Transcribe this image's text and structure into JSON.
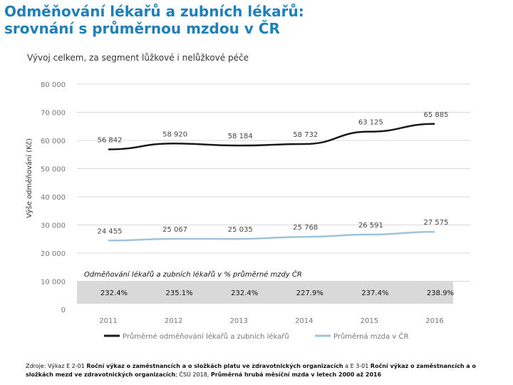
{
  "title_line1": "Odměňování lékařů a zubních lékařů:",
  "title_line2": "srovnání s průměrnou mzdou v ČR",
  "subtitle": "Vývoj celkem, za segment lůžkové i nelůžkové péče",
  "ratio_title": "Odměňování lékařů a zubních lékařů v % průměrné mzdy ČR",
  "ratio_values": [
    "232.4%",
    "235.1%",
    "232.4%",
    "227.9%",
    "237.4%",
    "238.9%"
  ],
  "source": {
    "p1": "Zdroje: Výkaz E 2-01 ",
    "b1": "Roční výkaz o zaměstnancích a o složkách platu ve zdravotnických organizacích",
    "p2": " a E 3-01 ",
    "b2": "Roční výkaz o zaměstnancích a o složkách mezd ve zdravotnických organizacích",
    "p3": "; ČSÚ 2018, ",
    "b3": "Průměrná hrubá měsíční mzda v letech 2000 až 2016"
  },
  "colors": {
    "title": "#1f7fb8",
    "doctors_line": "#1a1a1a",
    "wage_line": "#9ec3db",
    "axis_text": "#777777",
    "gridline": "#d9d9d9",
    "ratio_band": "#d9d9d9"
  },
  "chart_data": {
    "type": "line",
    "categories": [
      "2011",
      "2012",
      "2013",
      "2014",
      "2015",
      "2016"
    ],
    "series": [
      {
        "name": "Průměrné odměňování lékařů a zubních lékařů",
        "values": [
          56842,
          58920,
          58184,
          58732,
          63125,
          65885
        ],
        "labels": [
          "56 842",
          "58 920",
          "58 184",
          "58 732",
          "63 125",
          "65 885"
        ]
      },
      {
        "name": "Průměrná mzda v ČR",
        "values": [
          24455,
          25067,
          25035,
          25768,
          26591,
          27575
        ],
        "labels": [
          "24 455",
          "25 067",
          "25 035",
          "25 768",
          "26 591",
          "27 575"
        ]
      }
    ],
    "ylabel": "Výše odměňování (Kč)",
    "ylim": [
      0,
      80000
    ],
    "yticks": [
      "0",
      "10 000",
      "20 000",
      "30 000",
      "40 000",
      "50 000",
      "60 000",
      "70 000",
      "80 000"
    ],
    "legend_position": "bottom",
    "grid": true
  }
}
